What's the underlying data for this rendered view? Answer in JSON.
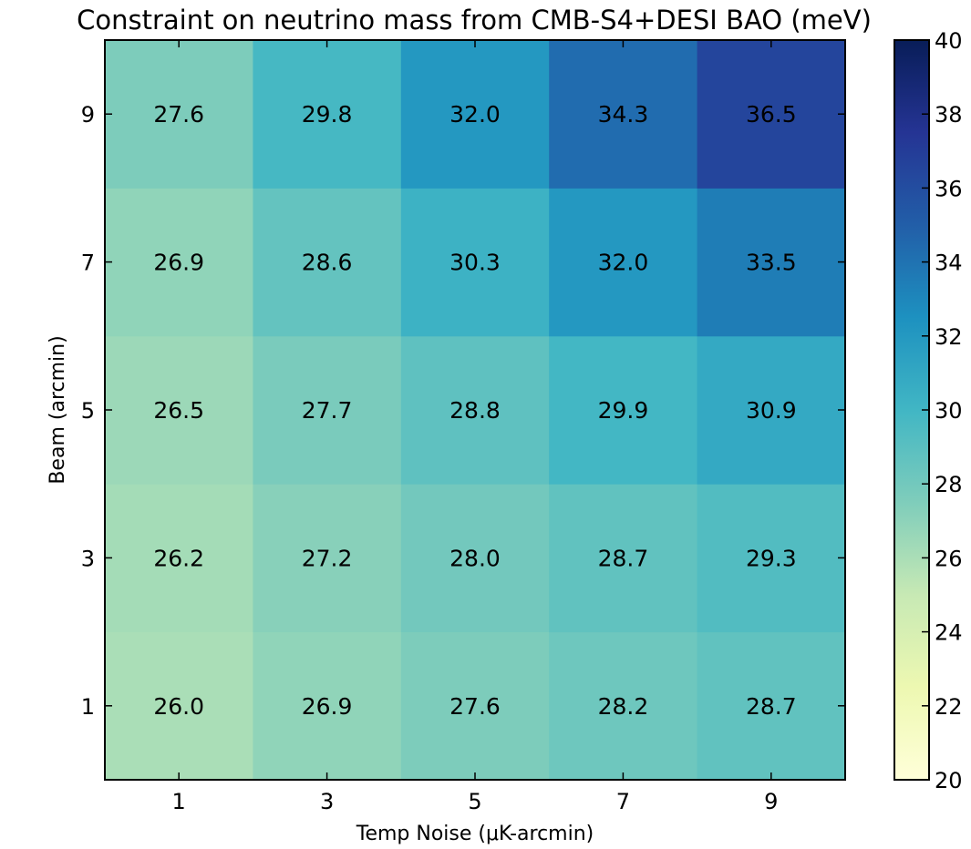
{
  "chart_data": {
    "type": "heatmap",
    "title": "Constraint on neutrino mass from CMB-S4+DESI BAO (meV)",
    "xlabel": "Temp Noise (μK-arcmin)",
    "ylabel": "Beam (arcmin)",
    "x_categories": [
      "1",
      "3",
      "5",
      "7",
      "9"
    ],
    "y_categories": [
      "1",
      "3",
      "5",
      "7",
      "9"
    ],
    "values": [
      [
        26.0,
        26.9,
        27.6,
        28.2,
        28.7
      ],
      [
        26.2,
        27.2,
        28.0,
        28.7,
        29.3
      ],
      [
        26.5,
        27.7,
        28.8,
        29.9,
        30.9
      ],
      [
        26.9,
        28.6,
        30.3,
        32.0,
        33.5
      ],
      [
        27.6,
        29.8,
        32.0,
        34.3,
        36.5
      ]
    ],
    "colorbar": {
      "min": 20,
      "max": 40,
      "ticks": [
        "20",
        "22",
        "24",
        "26",
        "28",
        "30",
        "32",
        "34",
        "36",
        "38",
        "40"
      ],
      "colormap": "YlGnBu",
      "stops": [
        "#ffffd9",
        "#edf8b1",
        "#c7e9b4",
        "#7fcdbb",
        "#41b6c4",
        "#1d91c0",
        "#225ea8",
        "#253494",
        "#081d58"
      ]
    }
  }
}
